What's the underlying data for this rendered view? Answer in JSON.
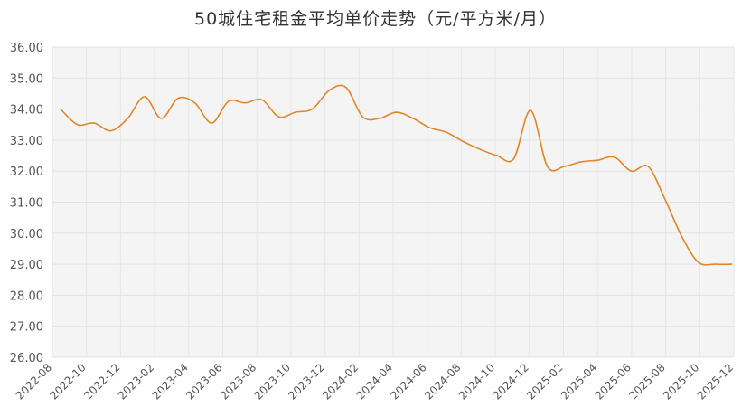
{
  "chart_data": {
    "type": "line",
    "title": "50城住宅租金平均单价走势（元/平方米/月）",
    "xlabel": "",
    "ylabel": "",
    "ylim": [
      26,
      36
    ],
    "yticks": [
      "26.00",
      "27.00",
      "28.00",
      "29.00",
      "30.00",
      "31.00",
      "32.00",
      "33.00",
      "34.00",
      "35.00",
      "36.00"
    ],
    "xticks": [
      "2022-08",
      "2022-10",
      "2022-12",
      "2023-02",
      "2023-04",
      "2023-06",
      "2023-08",
      "2023-10",
      "2023-12",
      "2024-02",
      "2024-04",
      "2024-06",
      "2024-08",
      "2024-10",
      "2024-12",
      "2025-02",
      "2025-04",
      "2025-06",
      "2025-08",
      "2025-10",
      "2025-12"
    ],
    "grid": true,
    "line_color": "#e0862a",
    "x": [
      "2022-08",
      "2022-09",
      "2022-10",
      "2022-11",
      "2022-12",
      "2023-01",
      "2023-02",
      "2023-03",
      "2023-04",
      "2023-05",
      "2023-06",
      "2023-07",
      "2023-08",
      "2023-09",
      "2023-10",
      "2023-11",
      "2023-12",
      "2024-01",
      "2024-02",
      "2024-03",
      "2024-04",
      "2024-05",
      "2024-06",
      "2024-07",
      "2024-08",
      "2024-09",
      "2024-10",
      "2024-11",
      "2024-12",
      "2025-01",
      "2025-02",
      "2025-03",
      "2025-04",
      "2025-05",
      "2025-06",
      "2025-07",
      "2025-08",
      "2025-09",
      "2025-10",
      "2025-11",
      "2025-12"
    ],
    "values": [
      34.0,
      33.5,
      33.55,
      33.3,
      33.7,
      34.4,
      33.7,
      34.35,
      34.2,
      33.55,
      34.25,
      34.2,
      34.3,
      33.75,
      33.9,
      34.0,
      34.6,
      34.7,
      33.75,
      33.7,
      33.9,
      33.7,
      33.4,
      33.25,
      32.95,
      32.7,
      32.5,
      32.4,
      33.96,
      32.15,
      32.15,
      32.3,
      32.35,
      32.45,
      32.0,
      32.15,
      31.1,
      29.9,
      29.06,
      29.0,
      29.0
    ]
  }
}
